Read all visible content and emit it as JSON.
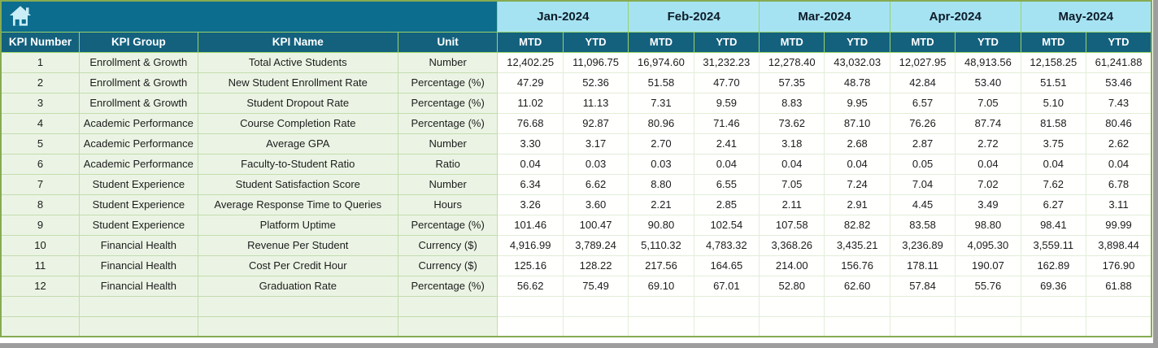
{
  "corner": {
    "icon": "home-icon"
  },
  "months": [
    "Jan-2024",
    "Feb-2024",
    "Mar-2024",
    "Apr-2024",
    "May-2024"
  ],
  "subheaders": {
    "mtd": "MTD",
    "ytd": "YTD"
  },
  "columns": {
    "kpi_number": "KPI Number",
    "kpi_group": "KPI Group",
    "kpi_name": "KPI Name",
    "unit": "Unit"
  },
  "colors": {
    "band_teal": "#0c6d8f",
    "header_teal": "#14617e",
    "month_blue": "#a6e3f2",
    "grid_green": "#97d468",
    "left_fill": "#ebf4e4",
    "window_gray": "#9d9d9d"
  },
  "rows": [
    {
      "number": "1",
      "group": "Enrollment & Growth",
      "name": "Total Active Students",
      "unit": "Number",
      "values": [
        "12,402.25",
        "11,096.75",
        "16,974.60",
        "31,232.23",
        "12,278.40",
        "43,032.03",
        "12,027.95",
        "48,913.56",
        "12,158.25",
        "61,241.88"
      ]
    },
    {
      "number": "2",
      "group": "Enrollment & Growth",
      "name": "New Student Enrollment Rate",
      "unit": "Percentage (%)",
      "values": [
        "47.29",
        "52.36",
        "51.58",
        "47.70",
        "57.35",
        "48.78",
        "42.84",
        "53.40",
        "51.51",
        "53.46"
      ]
    },
    {
      "number": "3",
      "group": "Enrollment & Growth",
      "name": "Student Dropout Rate",
      "unit": "Percentage (%)",
      "values": [
        "11.02",
        "11.13",
        "7.31",
        "9.59",
        "8.83",
        "9.95",
        "6.57",
        "7.05",
        "5.10",
        "7.43"
      ]
    },
    {
      "number": "4",
      "group": "Academic Performance",
      "name": "Course Completion Rate",
      "unit": "Percentage (%)",
      "values": [
        "76.68",
        "92.87",
        "80.96",
        "71.46",
        "73.62",
        "87.10",
        "76.26",
        "87.74",
        "81.58",
        "80.46"
      ]
    },
    {
      "number": "5",
      "group": "Academic Performance",
      "name": "Average GPA",
      "unit": "Number",
      "values": [
        "3.30",
        "3.17",
        "2.70",
        "2.41",
        "3.18",
        "2.68",
        "2.87",
        "2.72",
        "3.75",
        "2.62"
      ]
    },
    {
      "number": "6",
      "group": "Academic Performance",
      "name": "Faculty-to-Student Ratio",
      "unit": "Ratio",
      "values": [
        "0.04",
        "0.03",
        "0.03",
        "0.04",
        "0.04",
        "0.04",
        "0.05",
        "0.04",
        "0.04",
        "0.04"
      ]
    },
    {
      "number": "7",
      "group": "Student Experience",
      "name": "Student Satisfaction Score",
      "unit": "Number",
      "values": [
        "6.34",
        "6.62",
        "8.80",
        "6.55",
        "7.05",
        "7.24",
        "7.04",
        "7.02",
        "7.62",
        "6.78"
      ]
    },
    {
      "number": "8",
      "group": "Student Experience",
      "name": "Average Response Time to Queries",
      "unit": "Hours",
      "values": [
        "3.26",
        "3.60",
        "2.21",
        "2.85",
        "2.11",
        "2.91",
        "4.45",
        "3.49",
        "6.27",
        "3.11"
      ]
    },
    {
      "number": "9",
      "group": "Student Experience",
      "name": "Platform Uptime",
      "unit": "Percentage (%)",
      "values": [
        "101.46",
        "100.47",
        "90.80",
        "102.54",
        "107.58",
        "82.82",
        "83.58",
        "98.80",
        "98.41",
        "99.99"
      ]
    },
    {
      "number": "10",
      "group": "Financial Health",
      "name": "Revenue Per Student",
      "unit": "Currency ($)",
      "values": [
        "4,916.99",
        "3,789.24",
        "5,110.32",
        "4,783.32",
        "3,368.26",
        "3,435.21",
        "3,236.89",
        "4,095.30",
        "3,559.11",
        "3,898.44"
      ]
    },
    {
      "number": "11",
      "group": "Financial Health",
      "name": "Cost Per Credit Hour",
      "unit": "Currency ($)",
      "values": [
        "125.16",
        "128.22",
        "217.56",
        "164.65",
        "214.00",
        "156.76",
        "178.11",
        "190.07",
        "162.89",
        "176.90"
      ]
    },
    {
      "number": "12",
      "group": "Financial Health",
      "name": "Graduation Rate",
      "unit": "Percentage (%)",
      "values": [
        "56.62",
        "75.49",
        "69.10",
        "67.01",
        "52.80",
        "62.60",
        "57.84",
        "55.76",
        "69.36",
        "61.88"
      ]
    }
  ],
  "empty_row_count": 2
}
